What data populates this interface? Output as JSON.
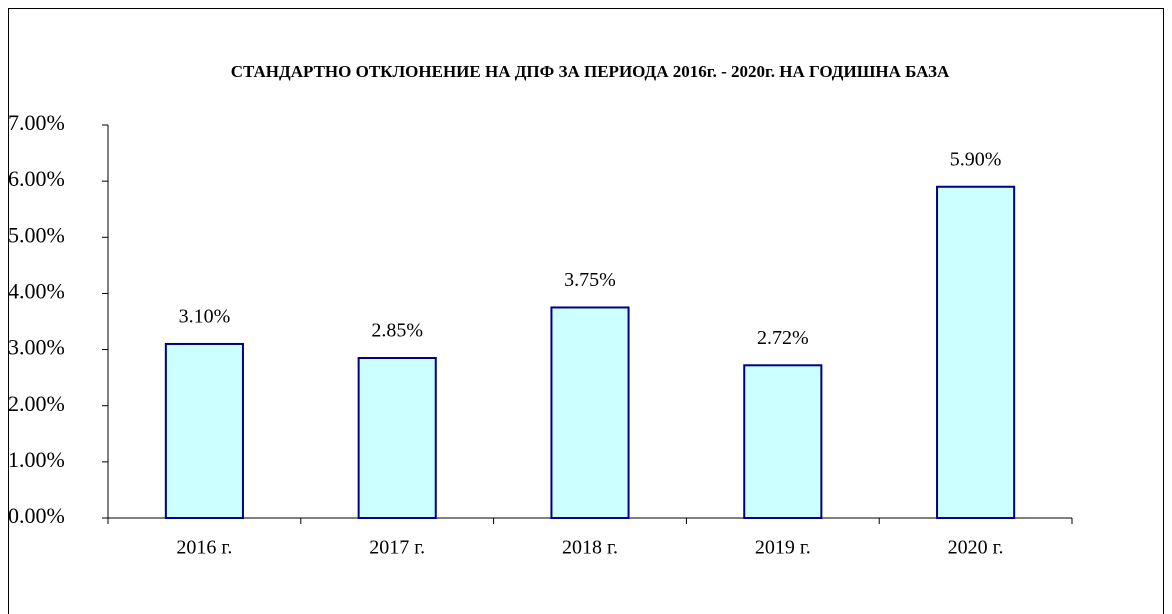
{
  "chart_data": {
    "type": "bar",
    "title": "СТАНДАРТНО ОТКЛОНЕНИЕ НА ДПФ ЗА ПЕРИОДА 2016г. - 2020г. НА ГОДИШНА БАЗА",
    "categories": [
      "2016 г.",
      "2017 г.",
      "2018 г.",
      "2019 г.",
      "2020 г."
    ],
    "values": [
      3.1,
      2.85,
      3.75,
      2.72,
      5.9
    ],
    "value_labels": [
      "3.10%",
      "2.85%",
      "3.75%",
      "2.72%",
      "5.90%"
    ],
    "color": "#ccffff",
    "edge_color": "#000080",
    "ylim": [
      0,
      7
    ],
    "yticks": [
      {
        "value": 0,
        "label": "0.00%"
      },
      {
        "value": 1,
        "label": "1.00%"
      },
      {
        "value": 2,
        "label": "2.00%"
      },
      {
        "value": 3,
        "label": "3.00%"
      },
      {
        "value": 4,
        "label": "4.00%"
      },
      {
        "value": 5,
        "label": "5.00%"
      },
      {
        "value": 6,
        "label": "6.00%"
      },
      {
        "value": 7,
        "label": "7.00%"
      }
    ],
    "grid": false
  }
}
